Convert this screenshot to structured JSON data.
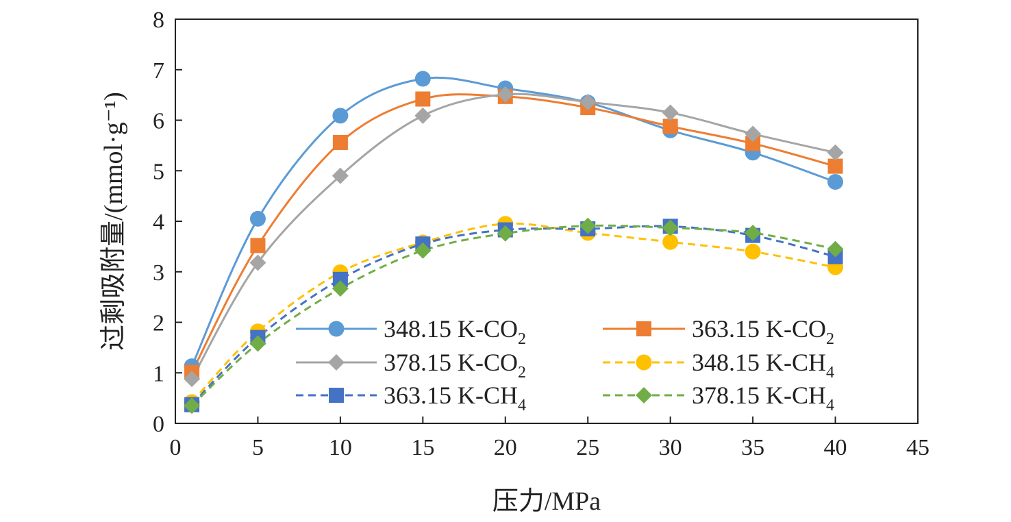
{
  "chart_data": {
    "type": "line",
    "xlabel": "压力/MPa",
    "ylabel": "过剩吸附量/(mmol·g⁻¹)",
    "xlim": [
      0,
      45
    ],
    "ylim": [
      0,
      8
    ],
    "xticks": [
      0,
      5,
      10,
      15,
      20,
      25,
      30,
      35,
      40,
      45
    ],
    "yticks": [
      0,
      1,
      2,
      3,
      4,
      5,
      6,
      7,
      8
    ],
    "grid": false,
    "legend_position": "lower-right",
    "x": [
      1,
      5,
      10,
      15,
      20,
      25,
      30,
      35,
      40
    ],
    "series": [
      {
        "name": "348.15 K-CO",
        "sub": "2",
        "color": "#5b9bd5",
        "marker": "circle",
        "dash": "solid",
        "values": [
          1.13,
          4.05,
          6.09,
          6.82,
          6.63,
          6.35,
          5.8,
          5.36,
          4.78
        ]
      },
      {
        "name": "363.15 K-CO",
        "sub": "2",
        "color": "#ed7d31",
        "marker": "square",
        "dash": "solid",
        "values": [
          1.01,
          3.52,
          5.56,
          6.42,
          6.47,
          6.25,
          5.88,
          5.54,
          5.09
        ]
      },
      {
        "name": "378.15 K-CO",
        "sub": "2",
        "color": "#a5a5a5",
        "marker": "diamond",
        "dash": "solid",
        "values": [
          0.88,
          3.18,
          4.9,
          6.09,
          6.51,
          6.36,
          6.15,
          5.73,
          5.36
        ]
      },
      {
        "name": "348.15 K-CH",
        "sub": "4",
        "color": "#ffc000",
        "marker": "circle",
        "dash": "dashed",
        "values": [
          0.42,
          1.82,
          2.99,
          3.58,
          3.95,
          3.77,
          3.59,
          3.4,
          3.09
        ]
      },
      {
        "name": "363.15 K-CH",
        "sub": "4",
        "color": "#4472c4",
        "marker": "square",
        "dash": "dashed",
        "values": [
          0.37,
          1.7,
          2.85,
          3.55,
          3.83,
          3.85,
          3.9,
          3.72,
          3.3
        ]
      },
      {
        "name": "378.15 K-CH",
        "sub": "4",
        "color": "#70ad47",
        "marker": "diamond",
        "dash": "dashed",
        "values": [
          0.35,
          1.58,
          2.67,
          3.42,
          3.76,
          3.91,
          3.87,
          3.77,
          3.45
        ]
      }
    ]
  }
}
